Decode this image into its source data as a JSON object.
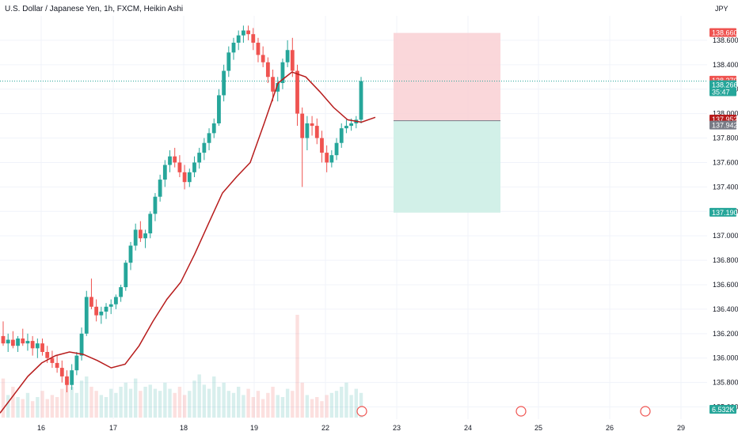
{
  "title": "U.S. Dollar / Japanese Yen, 1h, FXCM, Heikin Ashi",
  "currency": "JPY",
  "colors": {
    "up": "#26a69a",
    "down": "#ef5350",
    "ma": "#b71c1c",
    "stop_zone": "#f9d0d3",
    "target_zone": "#cdeee6",
    "grid": "#f0f3fa"
  },
  "chart_data": {
    "type": "candlestick",
    "ylim": [
      135.5,
      138.8
    ],
    "y_ticks": [
      "138.600",
      "138.400",
      "138.200",
      "138.000",
      "137.800",
      "137.600",
      "137.400",
      "137.200",
      "137.000",
      "136.800",
      "136.600",
      "136.400",
      "136.200",
      "136.000",
      "135.800",
      "135.600"
    ],
    "x_ticks": [
      "16",
      "17",
      "18",
      "19",
      "22",
      "23",
      "24",
      "25",
      "26",
      "29"
    ],
    "price_tags": [
      {
        "label": "138.660",
        "value": 138.66,
        "color": "#ef5350"
      },
      {
        "label": "138.270",
        "value": 138.27,
        "color": "#ef5350"
      },
      {
        "label": "138.266",
        "sub": "35:47",
        "value": 138.266,
        "color": "#26a69a"
      },
      {
        "label": "137.952",
        "value": 137.952,
        "color": "#b71c1c"
      },
      {
        "label": "137.942",
        "value": 137.942,
        "color": "#787b86"
      },
      {
        "label": "137.190",
        "value": 137.19,
        "color": "#26a69a"
      }
    ],
    "volume_tag": "6.532K",
    "position": {
      "entry": 137.942,
      "stop": 138.66,
      "target": 137.19
    },
    "candles": [
      [
        136.18,
        136.3,
        136.1,
        136.12
      ],
      [
        136.12,
        136.2,
        136.05,
        136.15
      ],
      [
        136.15,
        136.22,
        136.08,
        136.1
      ],
      [
        136.1,
        136.18,
        136.05,
        136.16
      ],
      [
        136.16,
        136.24,
        136.1,
        136.12
      ],
      [
        136.12,
        136.2,
        136.06,
        136.14
      ],
      [
        136.14,
        136.18,
        136.02,
        136.08
      ],
      [
        136.08,
        136.16,
        136.0,
        136.12
      ],
      [
        136.12,
        136.16,
        136.02,
        136.05
      ],
      [
        136.05,
        136.1,
        135.96,
        136.0
      ],
      [
        136.0,
        136.06,
        135.92,
        135.96
      ],
      [
        135.96,
        136.02,
        135.88,
        135.92
      ],
      [
        135.92,
        135.98,
        135.8,
        135.85
      ],
      [
        135.85,
        135.9,
        135.72,
        135.78
      ],
      [
        135.78,
        135.95,
        135.74,
        135.9
      ],
      [
        135.9,
        136.05,
        135.86,
        136.02
      ],
      [
        136.02,
        136.25,
        135.98,
        136.2
      ],
      [
        136.2,
        136.55,
        136.18,
        136.5
      ],
      [
        136.5,
        136.65,
        136.4,
        136.42
      ],
      [
        136.42,
        136.48,
        136.3,
        136.35
      ],
      [
        136.35,
        136.42,
        136.28,
        136.38
      ],
      [
        136.38,
        136.45,
        136.32,
        136.42
      ],
      [
        136.42,
        136.48,
        136.36,
        136.44
      ],
      [
        136.44,
        136.52,
        136.4,
        136.5
      ],
      [
        136.5,
        136.6,
        136.46,
        136.58
      ],
      [
        136.58,
        136.8,
        136.55,
        136.78
      ],
      [
        136.78,
        136.95,
        136.72,
        136.92
      ],
      [
        136.92,
        137.1,
        136.88,
        137.05
      ],
      [
        137.05,
        137.12,
        136.95,
        136.98
      ],
      [
        136.98,
        137.05,
        136.9,
        137.02
      ],
      [
        137.02,
        137.2,
        136.98,
        137.18
      ],
      [
        137.18,
        137.35,
        137.12,
        137.32
      ],
      [
        137.32,
        137.5,
        137.28,
        137.46
      ],
      [
        137.46,
        137.62,
        137.4,
        137.58
      ],
      [
        137.58,
        137.7,
        137.52,
        137.65
      ],
      [
        137.65,
        137.72,
        137.56,
        137.6
      ],
      [
        137.6,
        137.66,
        137.48,
        137.52
      ],
      [
        137.52,
        137.58,
        137.38,
        137.44
      ],
      [
        137.44,
        137.55,
        137.4,
        137.52
      ],
      [
        137.52,
        137.65,
        137.48,
        137.6
      ],
      [
        137.6,
        137.72,
        137.55,
        137.68
      ],
      [
        137.68,
        137.8,
        137.62,
        137.76
      ],
      [
        137.76,
        137.88,
        137.7,
        137.84
      ],
      [
        137.84,
        137.96,
        137.8,
        137.92
      ],
      [
        137.92,
        138.2,
        137.9,
        138.15
      ],
      [
        138.15,
        138.4,
        138.1,
        138.35
      ],
      [
        138.35,
        138.55,
        138.3,
        138.5
      ],
      [
        138.5,
        138.62,
        138.44,
        138.58
      ],
      [
        138.58,
        138.68,
        138.52,
        138.64
      ],
      [
        138.64,
        138.72,
        138.58,
        138.68
      ],
      [
        138.68,
        138.72,
        138.6,
        138.65
      ],
      [
        138.65,
        138.7,
        138.52,
        138.58
      ],
      [
        138.58,
        138.62,
        138.42,
        138.48
      ],
      [
        138.48,
        138.55,
        138.38,
        138.42
      ],
      [
        138.42,
        138.46,
        138.25,
        138.3
      ],
      [
        138.3,
        138.36,
        138.1,
        138.18
      ],
      [
        138.18,
        138.3,
        138.1,
        138.25
      ],
      [
        138.25,
        138.45,
        138.2,
        138.42
      ],
      [
        138.42,
        138.6,
        138.38,
        138.52
      ],
      [
        138.52,
        138.62,
        138.3,
        138.35
      ],
      [
        138.35,
        138.4,
        137.9,
        138.0
      ],
      [
        138.0,
        138.05,
        137.4,
        137.8
      ],
      [
        137.8,
        137.98,
        137.7,
        137.92
      ],
      [
        137.92,
        137.98,
        137.82,
        137.9
      ],
      [
        137.9,
        137.96,
        137.75,
        137.8
      ],
      [
        137.8,
        137.86,
        137.6,
        137.68
      ],
      [
        137.68,
        137.74,
        137.52,
        137.6
      ],
      [
        137.6,
        137.7,
        137.56,
        137.66
      ],
      [
        137.66,
        137.8,
        137.62,
        137.76
      ],
      [
        137.76,
        137.92,
        137.72,
        137.88
      ],
      [
        137.88,
        137.95,
        137.84,
        137.9
      ],
      [
        137.9,
        137.96,
        137.86,
        137.92
      ],
      [
        137.92,
        137.98,
        137.88,
        137.95
      ],
      [
        137.95,
        138.3,
        137.92,
        138.266
      ]
    ],
    "ma_curve": [
      135.55,
      135.7,
      135.85,
      135.96,
      136.02,
      136.05,
      136.03,
      135.98,
      135.92,
      135.95,
      136.1,
      136.3,
      136.48,
      136.62,
      136.85,
      137.1,
      137.35,
      137.48,
      137.6,
      137.92,
      138.25,
      138.34,
      138.3,
      138.18,
      138.05,
      137.95,
      137.93,
      137.97
    ],
    "volume": [
      0.38,
      0.22,
      0.3,
      0.2,
      0.18,
      0.24,
      0.16,
      0.2,
      0.26,
      0.18,
      0.22,
      0.2,
      0.28,
      0.34,
      0.3,
      0.24,
      0.36,
      0.4,
      0.3,
      0.26,
      0.22,
      0.2,
      0.28,
      0.24,
      0.3,
      0.34,
      0.28,
      0.38,
      0.26,
      0.3,
      0.32,
      0.28,
      0.26,
      0.34,
      0.28,
      0.24,
      0.3,
      0.22,
      0.26,
      0.36,
      0.42,
      0.32,
      0.28,
      0.4,
      0.3,
      0.34,
      0.26,
      0.24,
      0.3,
      0.22,
      0.28,
      0.2,
      0.26,
      0.18,
      0.24,
      0.3,
      0.22,
      0.2,
      0.28,
      0.26,
      1.0,
      0.34,
      0.22,
      0.18,
      0.2,
      0.16,
      0.22,
      0.24,
      0.26,
      0.3,
      0.34,
      0.22,
      0.28,
      0.24
    ]
  }
}
